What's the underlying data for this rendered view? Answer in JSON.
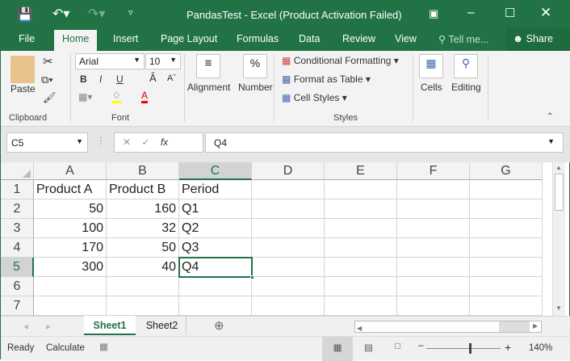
{
  "title": "PandasTest - Excel (Product Activation Failed)",
  "tabs": [
    "File",
    "Home",
    "Insert",
    "Page Layout",
    "Formulas",
    "Data",
    "Review",
    "View"
  ],
  "tell_me": "Tell me...",
  "share": "Share",
  "ribbon": {
    "paste": "Paste",
    "clipboard": "Clipboard",
    "font_name": "Arial",
    "font_size": "10",
    "font": "Font",
    "bold": "B",
    "italic": "I",
    "underline": "U",
    "alignment": "Alignment",
    "number": "Number",
    "percent": "%",
    "conditional_formatting": "Conditional Formatting",
    "format_as_table": "Format as Table",
    "cell_styles": "Cell Styles",
    "styles": "Styles",
    "cells": "Cells",
    "editing": "Editing"
  },
  "formula_bar": {
    "name_box": "C5",
    "fx": "fx",
    "value": "Q4"
  },
  "columns": [
    "A",
    "B",
    "C",
    "D",
    "E",
    "F",
    "G"
  ],
  "rows": [
    "1",
    "2",
    "3",
    "4",
    "5",
    "6",
    "7"
  ],
  "cells": [
    [
      "Product A",
      "Product B",
      "Period"
    ],
    [
      "50",
      "160",
      "Q1"
    ],
    [
      "100",
      "32",
      "Q2"
    ],
    [
      "170",
      "50",
      "Q3"
    ],
    [
      "300",
      "40",
      "Q4"
    ]
  ],
  "selected_cell": "C5",
  "sheets": [
    "Sheet1",
    "Sheet2"
  ],
  "active_sheet": "Sheet1",
  "status": {
    "ready": "Ready",
    "calculate": "Calculate",
    "zoom": "140%"
  },
  "colors": {
    "accent": "#217346",
    "fill": "#ffff00",
    "font_color": "#ff0000"
  }
}
